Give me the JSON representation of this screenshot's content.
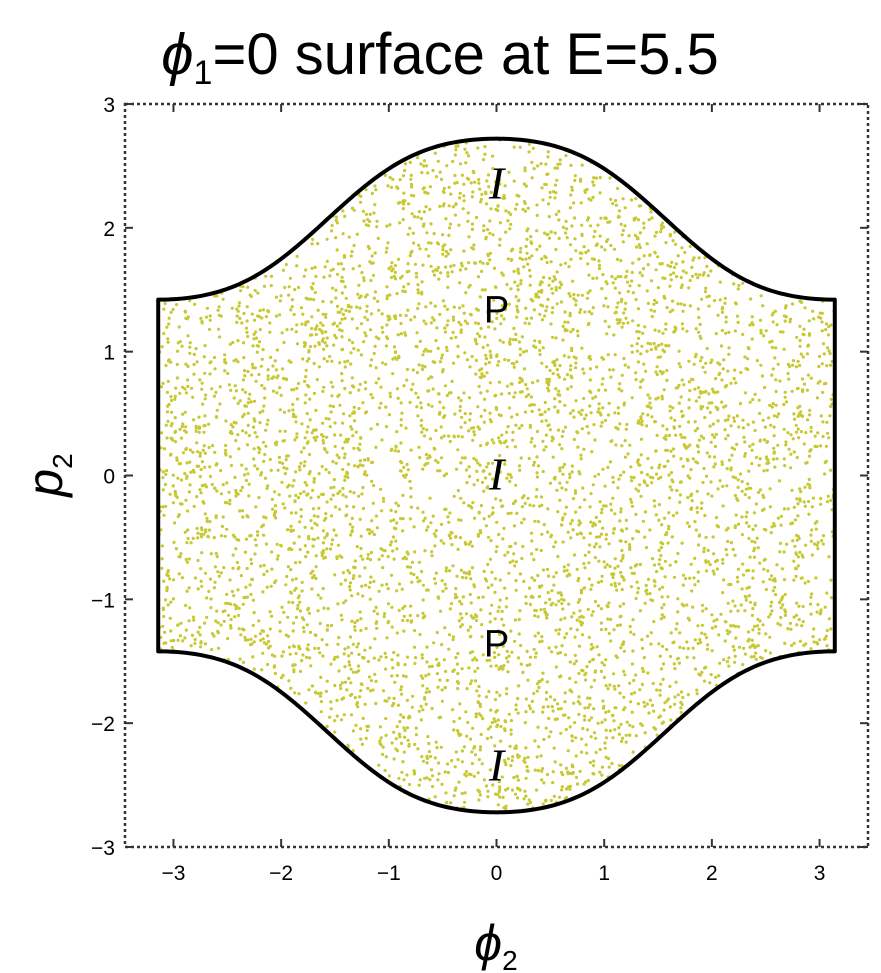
{
  "chart_data": {
    "type": "scatter",
    "title": {
      "symbol": "ϕ",
      "subscript": "1",
      "rest": "=0 surface at E=5.5"
    },
    "xlabel": {
      "symbol": "ϕ",
      "subscript": "2"
    },
    "ylabel": {
      "symbol": "p",
      "subscript": "2"
    },
    "xlim": [
      -3.45,
      3.45
    ],
    "ylim": [
      -3.0,
      3.0
    ],
    "x_ticks": [
      -3,
      -2,
      -1,
      0,
      1,
      2,
      3
    ],
    "y_ticks": [
      -3,
      -2,
      -1,
      0,
      1,
      2,
      3
    ],
    "x_tick_labels": [
      "−3",
      "−2",
      "−1",
      "0",
      "1",
      "2",
      "3"
    ],
    "y_tick_labels": [
      "−3",
      "−2",
      "−1",
      "0",
      "1",
      "2",
      "3"
    ],
    "grid": false,
    "frame_style": "dashed",
    "boundary": {
      "description": "energy surface boundary curve",
      "color": "#000000",
      "x_range": [
        -3.14159,
        3.14159
      ],
      "p_max_at_center": 2.72,
      "p_at_edges": 1.42
    },
    "scatter": {
      "color": "#c8c832",
      "point_count": 5200,
      "fills": "entire accessible region (chaotic sea)"
    },
    "annotations": [
      {
        "text": "I",
        "style": "italic",
        "x": 0.0,
        "y": 2.35
      },
      {
        "text": "P",
        "style": "normal",
        "x": 0.0,
        "y": 1.35
      },
      {
        "text": "I",
        "style": "italic",
        "x": 0.0,
        "y": 0.0
      },
      {
        "text": "P",
        "style": "normal",
        "x": 0.0,
        "y": -1.35
      },
      {
        "text": "I",
        "style": "italic",
        "x": 0.0,
        "y": -2.35
      }
    ]
  }
}
